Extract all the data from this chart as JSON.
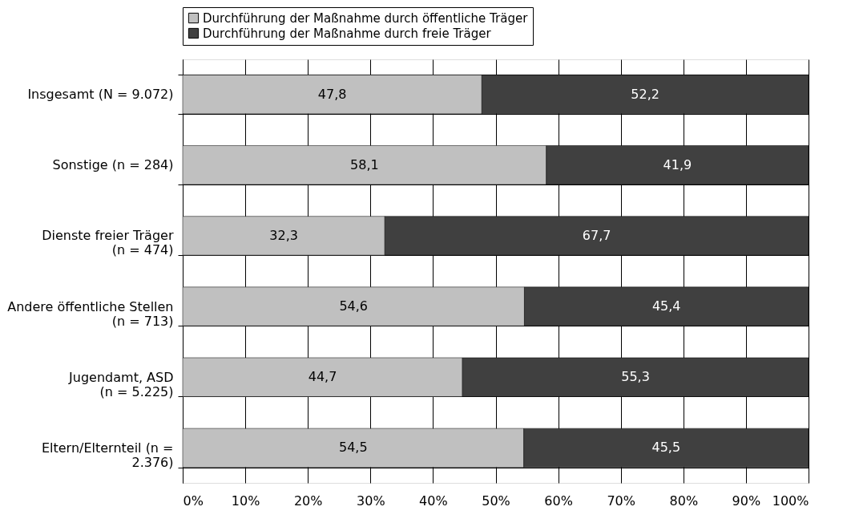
{
  "chart_data": {
    "type": "bar",
    "orientation": "horizontal",
    "stacked": true,
    "categories": [
      "Insgesamt (N  =  9.072)",
      "Sonstige (n  =  284)",
      "Dienste freier Träger\n(n  =  474)",
      "Andere öffentliche Stellen\n(n  =  713)",
      "Jugendamt, ASD\n(n  =  5.225)",
      "Eltern/Elternteil (n  =\n2.376)"
    ],
    "series": [
      {
        "name": "Durchführung der Maßnahme durch öffentliche Träger",
        "color": "#c0c0c0",
        "values": [
          47.8,
          58.1,
          32.3,
          54.6,
          44.7,
          54.5
        ],
        "value_labels": [
          "47,8",
          "58,1",
          "32,3",
          "54,6",
          "44,7",
          "54,5"
        ]
      },
      {
        "name": "Durchführung der Maßnahme durch freie Träger",
        "color": "#404040",
        "values": [
          52.2,
          41.9,
          67.7,
          45.4,
          55.3,
          45.5
        ],
        "value_labels": [
          "52,2",
          "41,9",
          "67,7",
          "45,4",
          "55,3",
          "45,5"
        ]
      }
    ],
    "xlim": [
      0,
      100
    ],
    "xticks": [
      {
        "value": 0,
        "label": "0%"
      },
      {
        "value": 10,
        "label": "10%"
      },
      {
        "value": 20,
        "label": "20%"
      },
      {
        "value": 30,
        "label": "30%"
      },
      {
        "value": 40,
        "label": "40%"
      },
      {
        "value": 50,
        "label": "50%"
      },
      {
        "value": 60,
        "label": "60%"
      },
      {
        "value": 70,
        "label": "70%"
      },
      {
        "value": 80,
        "label": "80%"
      },
      {
        "value": 90,
        "label": "90%"
      },
      {
        "value": 100,
        "label": "100%"
      }
    ],
    "grid": true,
    "legend": "top"
  }
}
